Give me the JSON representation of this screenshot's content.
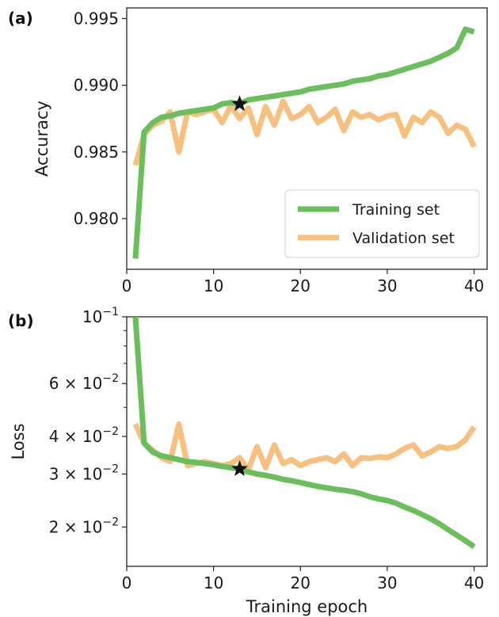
{
  "colors": {
    "training": "#6abf5c",
    "validation": "#f8c07e",
    "star": "#111111",
    "axis": "#222222"
  },
  "chart_data": [
    {
      "panel_label": "(a)",
      "type": "line",
      "xlabel": "",
      "ylabel": "Accuracy",
      "xlim": [
        0,
        41.5
      ],
      "ylim": [
        0.9762,
        0.9958
      ],
      "xticks": [
        0,
        10,
        20,
        30,
        40
      ],
      "xtick_labels": [
        "0",
        "10",
        "20",
        "30",
        "40"
      ],
      "yticks": [
        0.98,
        0.985,
        0.99,
        0.995
      ],
      "ytick_labels": [
        "0.980",
        "0.985",
        "0.990",
        "0.995"
      ],
      "legend": {
        "placement": "lower-right",
        "entries": [
          "Training set",
          "Validation set"
        ]
      },
      "star": {
        "x": 13,
        "y": 0.9886
      },
      "series": [
        {
          "name": "Training set",
          "x": [
            1,
            2,
            3,
            4,
            5,
            6,
            7,
            8,
            9,
            10,
            11,
            12,
            13,
            14,
            15,
            16,
            17,
            18,
            19,
            20,
            21,
            22,
            23,
            24,
            25,
            26,
            27,
            28,
            29,
            30,
            31,
            32,
            33,
            34,
            35,
            36,
            37,
            38,
            39,
            40
          ],
          "values": [
            0.977,
            0.9865,
            0.9872,
            0.9876,
            0.9877,
            0.9879,
            0.988,
            0.9881,
            0.9882,
            0.9883,
            0.9886,
            0.9887,
            0.9886,
            0.9889,
            0.989,
            0.9891,
            0.9892,
            0.9893,
            0.9894,
            0.9895,
            0.9897,
            0.9898,
            0.9899,
            0.99,
            0.9901,
            0.9903,
            0.9904,
            0.9905,
            0.9907,
            0.9908,
            0.991,
            0.9912,
            0.9914,
            0.9916,
            0.9918,
            0.9921,
            0.9924,
            0.9928,
            0.9942,
            0.994
          ]
        },
        {
          "name": "Validation set",
          "x": [
            1,
            2,
            3,
            4,
            5,
            6,
            7,
            8,
            9,
            10,
            11,
            12,
            13,
            14,
            15,
            16,
            17,
            18,
            19,
            20,
            21,
            22,
            23,
            24,
            25,
            26,
            27,
            28,
            29,
            30,
            31,
            32,
            33,
            34,
            35,
            36,
            37,
            38,
            39,
            40
          ],
          "values": [
            0.984,
            0.9863,
            0.987,
            0.9873,
            0.988,
            0.985,
            0.988,
            0.9878,
            0.988,
            0.9882,
            0.9872,
            0.9885,
            0.9875,
            0.9883,
            0.9863,
            0.9884,
            0.987,
            0.9888,
            0.9875,
            0.9878,
            0.9884,
            0.9872,
            0.9876,
            0.9882,
            0.9866,
            0.988,
            0.9876,
            0.9878,
            0.9874,
            0.9877,
            0.9878,
            0.9862,
            0.9876,
            0.9872,
            0.988,
            0.9876,
            0.9864,
            0.987,
            0.9867,
            0.9854
          ]
        }
      ]
    },
    {
      "panel_label": "(b)",
      "type": "line",
      "xlabel": "Training epoch",
      "ylabel": "Loss",
      "yscale": "log",
      "xlim": [
        0,
        41.5
      ],
      "ylim": [
        0.0148,
        0.1
      ],
      "xticks": [
        0,
        10,
        20,
        30,
        40
      ],
      "xtick_labels": [
        "0",
        "10",
        "20",
        "30",
        "40"
      ],
      "yticks": [
        0.02,
        0.03,
        0.04,
        0.06,
        0.1
      ],
      "ytick_labels": [
        {
          "base": "2 × 10",
          "exp": "−2"
        },
        {
          "base": "3 × 10",
          "exp": "−2"
        },
        {
          "base": "4 × 10",
          "exp": "−2"
        },
        {
          "base": "6 × 10",
          "exp": "−2"
        },
        {
          "base": "10",
          "exp": "−1"
        }
      ],
      "minor_yticks": [
        0.05,
        0.07,
        0.08,
        0.09
      ],
      "star": {
        "x": 13,
        "y": 0.0312
      },
      "series": [
        {
          "name": "Training set",
          "x": [
            1,
            2,
            3,
            4,
            5,
            6,
            7,
            8,
            9,
            10,
            11,
            12,
            13,
            14,
            15,
            16,
            17,
            18,
            19,
            20,
            21,
            22,
            23,
            24,
            25,
            26,
            27,
            28,
            29,
            30,
            31,
            32,
            33,
            34,
            35,
            36,
            37,
            38,
            39,
            40
          ],
          "values": [
            0.1,
            0.038,
            0.0355,
            0.0345,
            0.034,
            0.0335,
            0.033,
            0.0328,
            0.0325,
            0.0322,
            0.0318,
            0.0315,
            0.0312,
            0.0305,
            0.03,
            0.0297,
            0.0293,
            0.0288,
            0.0285,
            0.0281,
            0.0277,
            0.0273,
            0.027,
            0.0267,
            0.0265,
            0.0262,
            0.0258,
            0.0252,
            0.0248,
            0.0245,
            0.024,
            0.0233,
            0.0227,
            0.022,
            0.0213,
            0.0205,
            0.0196,
            0.0188,
            0.018,
            0.0172
          ]
        },
        {
          "name": "Validation set",
          "x": [
            1,
            2,
            3,
            4,
            5,
            6,
            7,
            8,
            9,
            10,
            11,
            12,
            13,
            14,
            15,
            16,
            17,
            18,
            19,
            20,
            21,
            22,
            23,
            24,
            25,
            26,
            27,
            28,
            29,
            30,
            31,
            32,
            33,
            34,
            35,
            36,
            37,
            38,
            39,
            40
          ],
          "values": [
            0.044,
            0.038,
            0.036,
            0.034,
            0.033,
            0.044,
            0.032,
            0.0325,
            0.033,
            0.0325,
            0.032,
            0.0325,
            0.034,
            0.031,
            0.037,
            0.0315,
            0.0375,
            0.0325,
            0.0335,
            0.032,
            0.033,
            0.0335,
            0.034,
            0.033,
            0.035,
            0.032,
            0.034,
            0.0338,
            0.0342,
            0.034,
            0.035,
            0.0365,
            0.0375,
            0.0345,
            0.0355,
            0.037,
            0.0365,
            0.037,
            0.039,
            0.043
          ]
        }
      ]
    }
  ]
}
